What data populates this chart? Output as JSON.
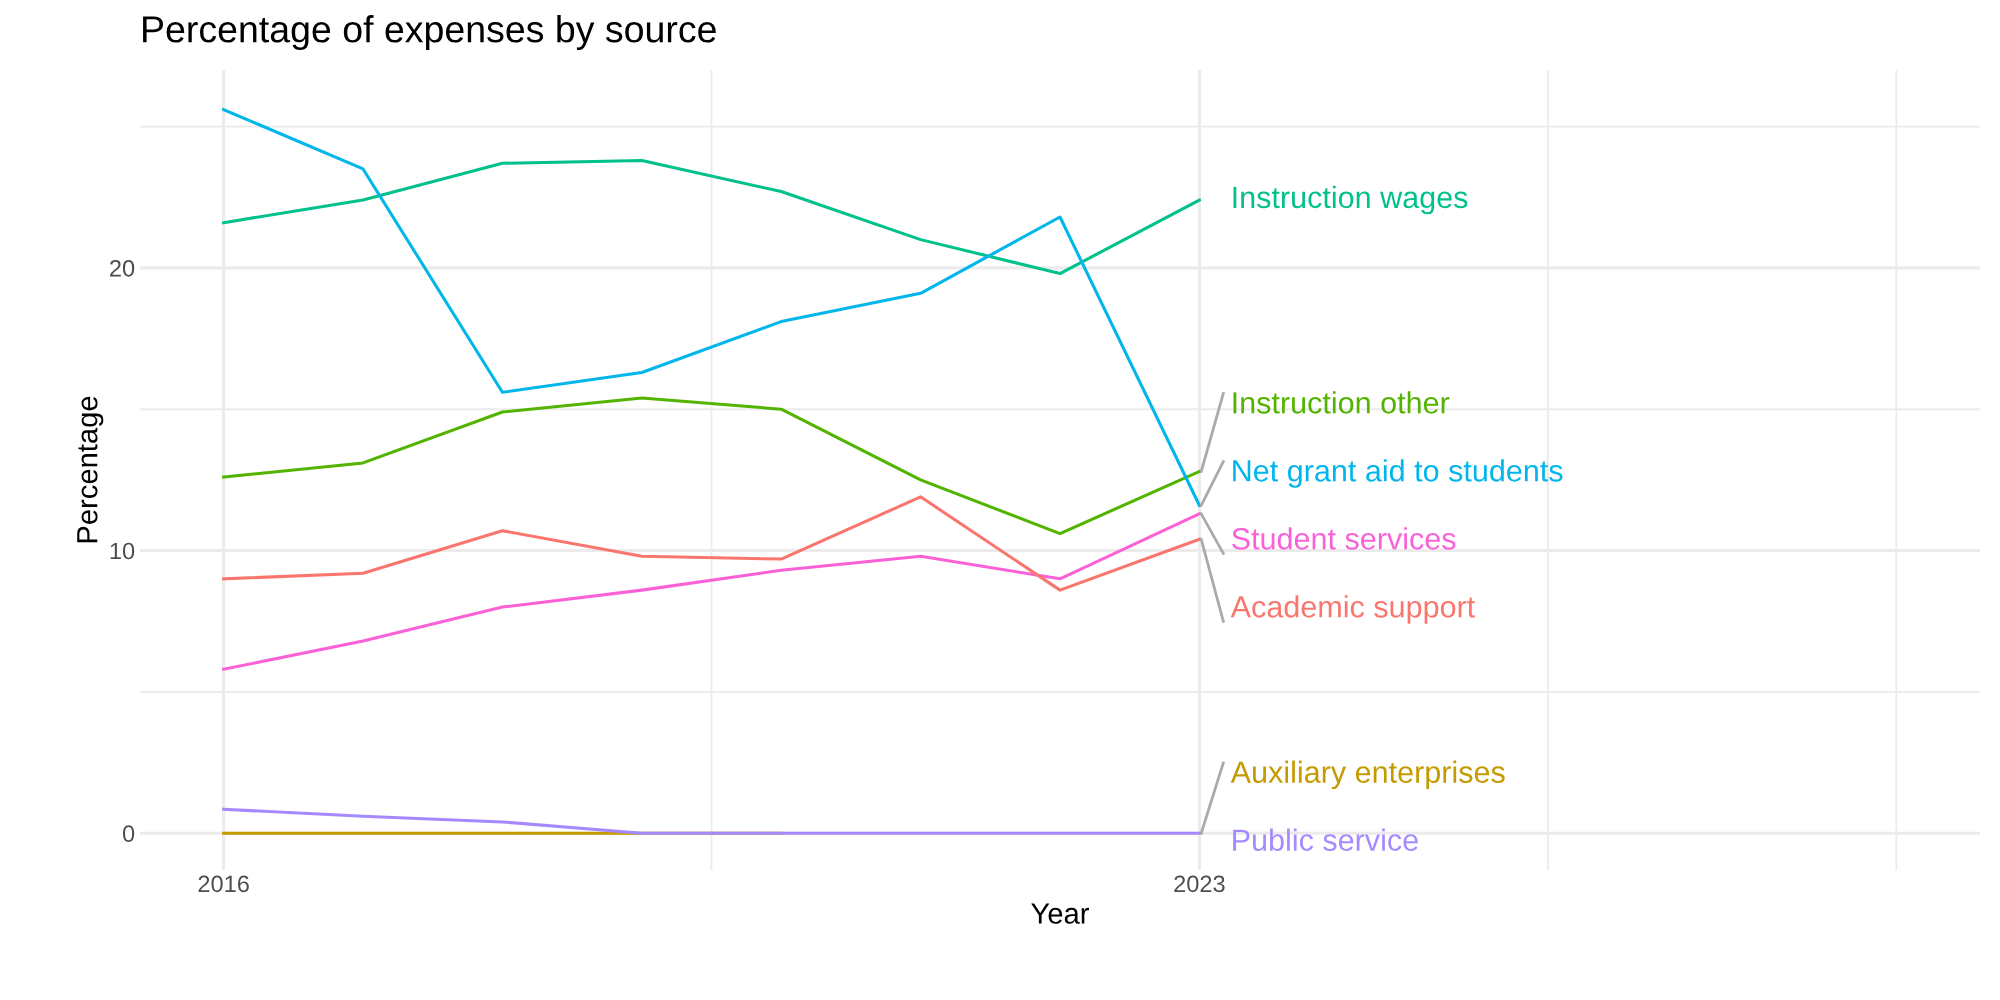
{
  "chart_data": {
    "type": "line",
    "title": "Percentage of expenses by source",
    "xlabel": "Year",
    "ylabel": "Percentage",
    "x": [
      2016,
      2017,
      2018,
      2019,
      2020,
      2021,
      2022,
      2023
    ],
    "series": [
      {
        "name": "Instruction wages",
        "color": "#00c08b",
        "values": [
          21.6,
          22.4,
          23.7,
          23.8,
          22.7,
          21.0,
          19.8,
          22.4
        ]
      },
      {
        "name": "Instruction other",
        "color": "#53b400",
        "values": [
          12.6,
          13.1,
          14.9,
          15.4,
          15.0,
          12.5,
          10.6,
          12.8
        ]
      },
      {
        "name": "Net grant aid to students",
        "color": "#00b6eb",
        "values": [
          25.6,
          23.5,
          15.6,
          16.3,
          18.1,
          19.1,
          21.8,
          11.6
        ]
      },
      {
        "name": "Student services",
        "color": "#fb61d7",
        "values": [
          5.8,
          6.8,
          8.0,
          8.6,
          9.3,
          9.8,
          9.0,
          11.3
        ]
      },
      {
        "name": "Academic support",
        "color": "#f8766d",
        "values": [
          9.0,
          9.2,
          10.7,
          9.8,
          9.7,
          11.9,
          8.6,
          10.4
        ]
      },
      {
        "name": "Auxiliary enterprises",
        "color": "#c49a00",
        "values": [
          0,
          0,
          0,
          0,
          0,
          null,
          null,
          null
        ]
      },
      {
        "name": "Public service",
        "color": "#a58aff",
        "values": [
          0.85,
          0.6,
          0.4,
          0,
          0,
          0,
          0,
          0
        ]
      }
    ],
    "xlim": [
      2015.4,
      2028.6
    ],
    "ylim": [
      -1.3,
      27
    ],
    "xticks": [
      2016,
      {
        "value": 2019.5,
        "label": null
      },
      2023,
      {
        "value": 2025.5,
        "label": null
      },
      {
        "value": 2028,
        "label": null
      }
    ],
    "yticks": [
      0,
      {
        "value": 5,
        "label": null
      },
      10,
      {
        "value": 15,
        "label": null
      },
      20,
      {
        "value": 25,
        "label": null
      }
    ],
    "grid": true,
    "legend": false,
    "line_style": "solid",
    "marker": "none"
  }
}
